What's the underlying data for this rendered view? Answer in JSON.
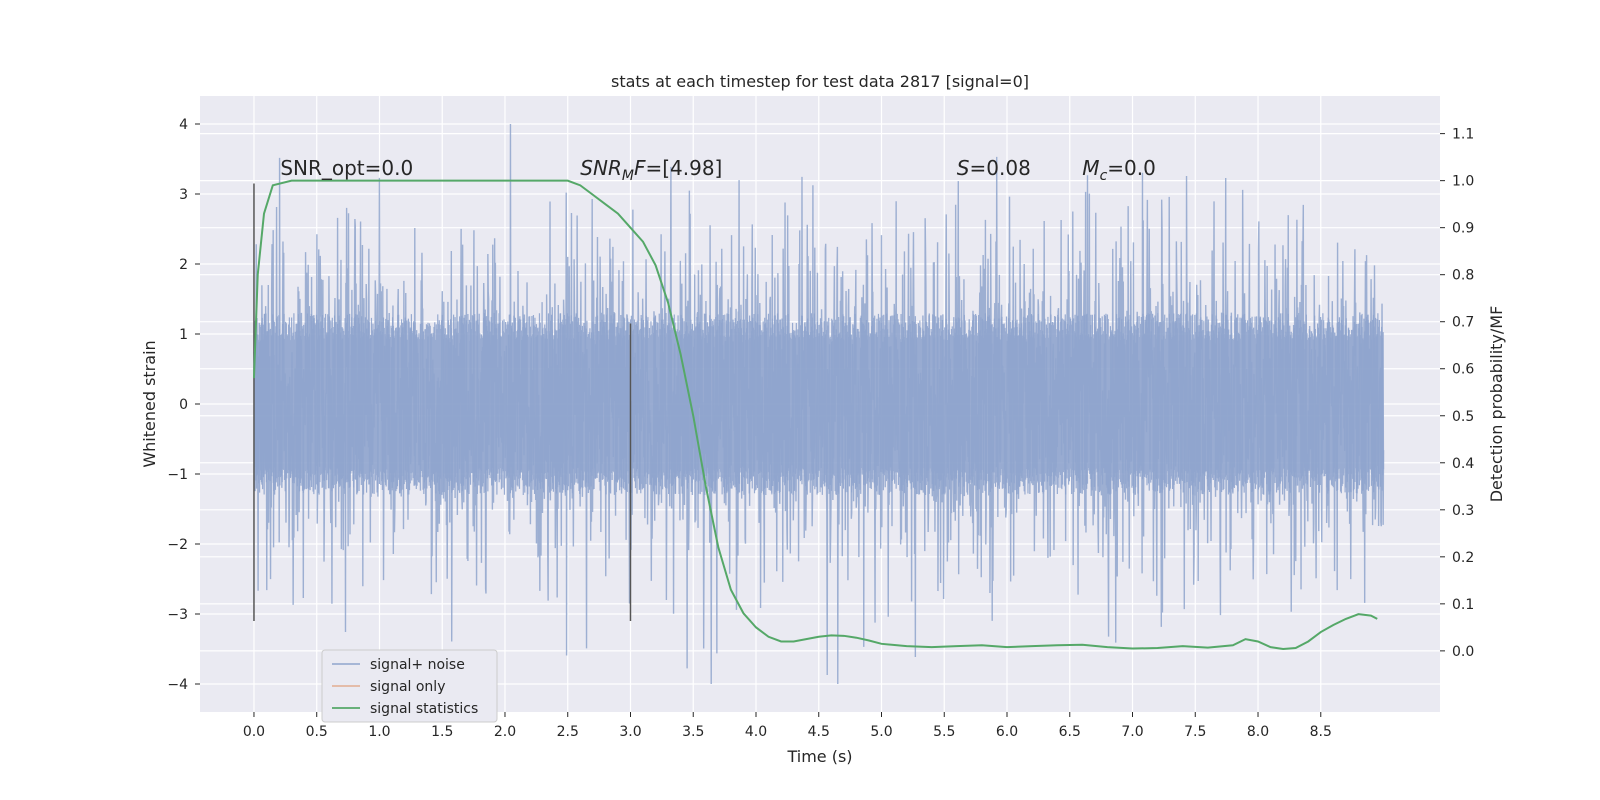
{
  "chart_data": {
    "type": "line",
    "title": "stats at each timestep for test data 2817 [signal=0]",
    "xlabel": "Time (s)",
    "ylabel": "Whitened strain",
    "y2label": "Detection probability/MF",
    "xlim": [
      -0.43,
      9.45
    ],
    "ylim": [
      -4.4,
      4.4
    ],
    "y2lim": [
      -0.13,
      1.18
    ],
    "x_ticks": [
      0.0,
      0.5,
      1.0,
      1.5,
      2.0,
      2.5,
      3.0,
      3.5,
      4.0,
      4.5,
      5.0,
      5.5,
      6.0,
      6.5,
      7.0,
      7.5,
      8.0,
      8.5
    ],
    "x_tick_labels": [
      "0.0",
      "0.5",
      "1.0",
      "1.5",
      "2.0",
      "2.5",
      "3.0",
      "3.5",
      "4.0",
      "4.5",
      "5.0",
      "5.5",
      "6.0",
      "6.5",
      "7.0",
      "7.5",
      "8.0",
      "8.5"
    ],
    "y_ticks": [
      -4,
      -3,
      -2,
      -1,
      0,
      1,
      2,
      3,
      4
    ],
    "y_tick_labels": [
      "−4",
      "−3",
      "−2",
      "−1",
      "0",
      "1",
      "2",
      "3",
      "4"
    ],
    "y2_ticks": [
      0.0,
      0.1,
      0.2,
      0.3,
      0.4,
      0.5,
      0.6,
      0.7,
      0.8,
      0.9,
      1.0,
      1.1
    ],
    "y2_tick_labels": [
      "0.0",
      "0.1",
      "0.2",
      "0.3",
      "0.4",
      "0.5",
      "0.6",
      "0.7",
      "0.8",
      "0.9",
      "1.0",
      "1.1"
    ],
    "grid": true,
    "legend_position": "lower-left",
    "series": [
      {
        "name": "signal+ noise",
        "color": "#8fa4cd",
        "axis": "left",
        "kind": "noise",
        "x_range": [
          0.0,
          9.0
        ],
        "typical_amplitude": 1.3,
        "peak_min": -4.0,
        "peak_max": 4.0
      },
      {
        "name": "signal only",
        "color": "#dd8452",
        "axis": "left",
        "kind": "line",
        "x": [],
        "y": []
      },
      {
        "name": "signal statistics",
        "color": "#55a868",
        "axis": "right",
        "kind": "line",
        "x": [
          0.0,
          0.03,
          0.08,
          0.15,
          0.3,
          0.5,
          1.0,
          1.5,
          2.0,
          2.5,
          2.6,
          2.7,
          2.8,
          2.9,
          3.0,
          3.1,
          3.2,
          3.3,
          3.4,
          3.5,
          3.6,
          3.7,
          3.8,
          3.9,
          4.0,
          4.1,
          4.2,
          4.3,
          4.4,
          4.5,
          4.6,
          4.7,
          4.8,
          4.9,
          5.0,
          5.2,
          5.4,
          5.6,
          5.8,
          6.0,
          6.2,
          6.4,
          6.6,
          6.8,
          7.0,
          7.2,
          7.4,
          7.6,
          7.8,
          7.9,
          8.0,
          8.1,
          8.2,
          8.3,
          8.4,
          8.5,
          8.6,
          8.7,
          8.8,
          8.9,
          8.95
        ],
        "y": [
          0.58,
          0.8,
          0.93,
          0.99,
          1.0,
          1.0,
          1.0,
          1.0,
          1.0,
          1.0,
          0.99,
          0.97,
          0.95,
          0.93,
          0.9,
          0.87,
          0.82,
          0.74,
          0.63,
          0.5,
          0.35,
          0.22,
          0.13,
          0.08,
          0.05,
          0.03,
          0.02,
          0.02,
          0.025,
          0.03,
          0.033,
          0.032,
          0.028,
          0.022,
          0.015,
          0.01,
          0.008,
          0.01,
          0.012,
          0.008,
          0.01,
          0.012,
          0.013,
          0.008,
          0.005,
          0.006,
          0.01,
          0.007,
          0.012,
          0.025,
          0.02,
          0.008,
          0.004,
          0.006,
          0.02,
          0.04,
          0.055,
          0.068,
          0.078,
          0.075,
          0.068
        ]
      }
    ],
    "vertical_markers": [
      {
        "x": 0.0,
        "y_from": -3.1,
        "y_to": 3.15,
        "color": "#555555"
      },
      {
        "x": 3.0,
        "y_from": -3.1,
        "y_to": 1.15,
        "color": "#555555"
      }
    ],
    "annotations": [
      {
        "id": "snr-opt",
        "text": "SNR_opt=0.0",
        "x": 0.21,
        "italic": false
      },
      {
        "id": "snr-mf",
        "text": "SNR_MF=[4.98]",
        "x": 2.6,
        "italic": true
      },
      {
        "id": "s-stat",
        "text": "S=0.08",
        "x": 5.6,
        "italic": true
      },
      {
        "id": "mc",
        "text": "M_c=0.0",
        "x": 6.6,
        "italic": true
      }
    ],
    "annotation_y": 3.27
  },
  "annotations_text": {
    "snr_opt": "SNR_opt=0.0",
    "snr_mf_main": "SNR",
    "snr_mf_sub": "M",
    "snr_mf_rest": "F=[4.98]",
    "s_label": "S",
    "s_value": "=0.08",
    "mc_main": "M",
    "mc_sub": "c",
    "mc_value": "=0.0"
  },
  "colors": {
    "plot_bg": "#eaeaf2",
    "grid": "#ffffff",
    "text": "#262626"
  }
}
